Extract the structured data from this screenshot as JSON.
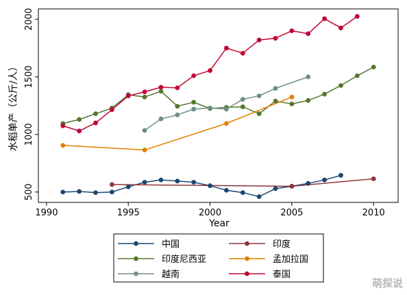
{
  "chart_data": {
    "type": "line",
    "xlabel": "Year",
    "ylabel": "水稻单产（公斤/人）",
    "xlim": [
      1989.5,
      2011.5
    ],
    "ylim": [
      410,
      2090
    ],
    "x_ticks": [
      1990,
      1995,
      2000,
      2005,
      2010
    ],
    "y_ticks": [
      500,
      1000,
      1500,
      2000
    ],
    "grid": false,
    "legend_position": "bottom",
    "series": [
      {
        "name": "中国",
        "color": "#1a476f",
        "x": [
          1991,
          1992,
          1993,
          1994,
          1995,
          1996,
          1997,
          1998,
          1999,
          2000,
          2001,
          2002,
          2003,
          2004,
          2005,
          2006,
          2007,
          2008
        ],
        "y": [
          500,
          505,
          495,
          500,
          545,
          585,
          605,
          595,
          585,
          555,
          515,
          495,
          460,
          530,
          550,
          575,
          605,
          645
        ]
      },
      {
        "name": "印度",
        "color": "#90353b",
        "x": [
          1994,
          2005,
          2010
        ],
        "y": [
          565,
          550,
          615
        ]
      },
      {
        "name": "印度尼西亚",
        "color": "#55752f",
        "x": [
          1991,
          1992,
          1993,
          1994,
          1995,
          1996,
          1997,
          1998,
          1999,
          2000,
          2001,
          2002,
          2003,
          2004,
          2005,
          2006,
          2007,
          2008,
          2009,
          2010
        ],
        "y": [
          1095,
          1130,
          1180,
          1230,
          1345,
          1325,
          1375,
          1245,
          1280,
          1225,
          1235,
          1240,
          1180,
          1290,
          1265,
          1295,
          1350,
          1425,
          1510,
          1585
        ]
      },
      {
        "name": "孟加拉国",
        "color": "#e37e00",
        "x": [
          1991,
          1996,
          2001,
          2005
        ],
        "y": [
          905,
          865,
          1095,
          1325
        ]
      },
      {
        "name": "越南",
        "color": "#6e8e84",
        "x": [
          1996,
          1997,
          1998,
          1999,
          2000,
          2001,
          2002,
          2003,
          2004,
          2006
        ],
        "y": [
          1035,
          1135,
          1170,
          1220,
          1230,
          1220,
          1305,
          1335,
          1400,
          1500
        ]
      },
      {
        "name": "泰国",
        "color": "#c10534",
        "x": [
          1991,
          1992,
          1993,
          1994,
          1995,
          1996,
          1997,
          1998,
          1999,
          2000,
          2001,
          2002,
          2003,
          2004,
          2005,
          2006,
          2007,
          2008,
          2009
        ],
        "y": [
          1075,
          1030,
          1100,
          1215,
          1335,
          1370,
          1410,
          1405,
          1510,
          1555,
          1750,
          1705,
          1820,
          1835,
          1900,
          1875,
          2005,
          1925,
          2025
        ]
      }
    ]
  },
  "watermark": "萌探说"
}
